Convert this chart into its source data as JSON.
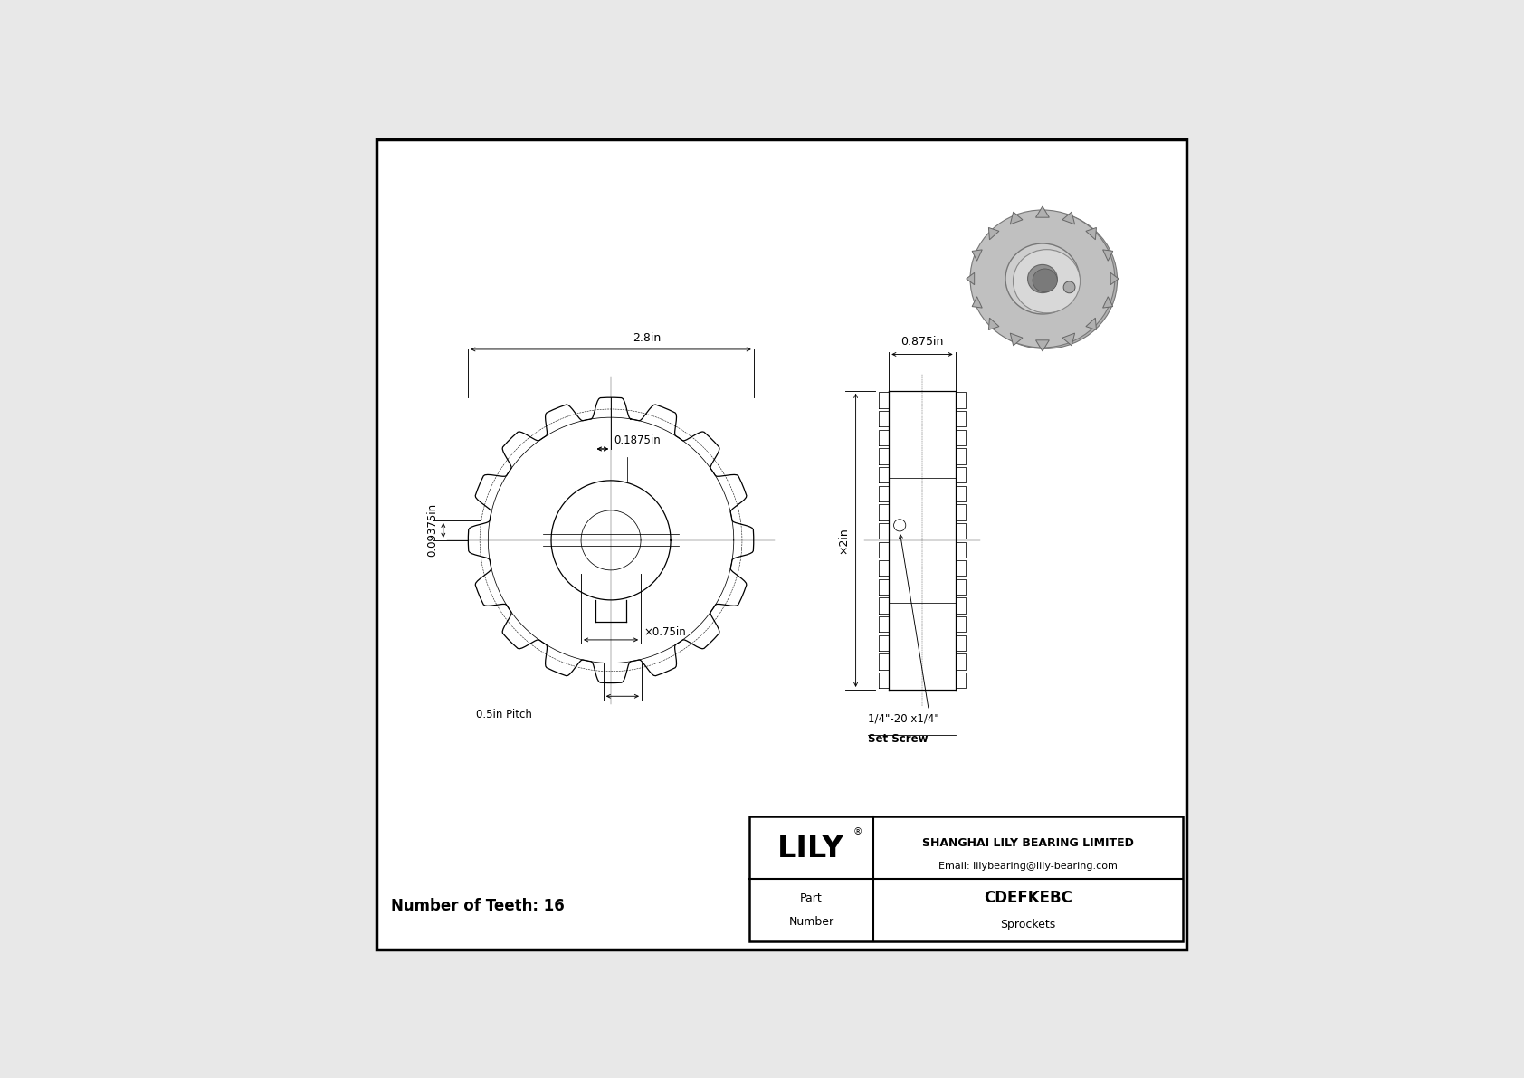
{
  "bg_color": "#f0f0f0",
  "white": "#ffffff",
  "black": "#000000",
  "num_teeth_label": "Number of Teeth: 16",
  "part_number": "CDEFKEBC",
  "part_type": "Sprockets",
  "company": "SHANGHAI LILY BEARING LIMITED",
  "email": "Email: lilybearing@lily-bearing.com",
  "brand": "LILY",
  "dim_outer": "2.8in",
  "dim_hub_top": "0.1875in",
  "dim_tooth_h": "0.09375in",
  "dim_bore": "×0.75in",
  "dim_pitch": "0.5in Pitch",
  "dim_side_width": "0.875in",
  "dim_side_height": "×2in",
  "dim_set_screw_line1": "1/4\"-20 x1/4\"",
  "dim_set_screw_line2": "Set Screw",
  "part_label_1": "Part",
  "part_label_2": "Number"
}
